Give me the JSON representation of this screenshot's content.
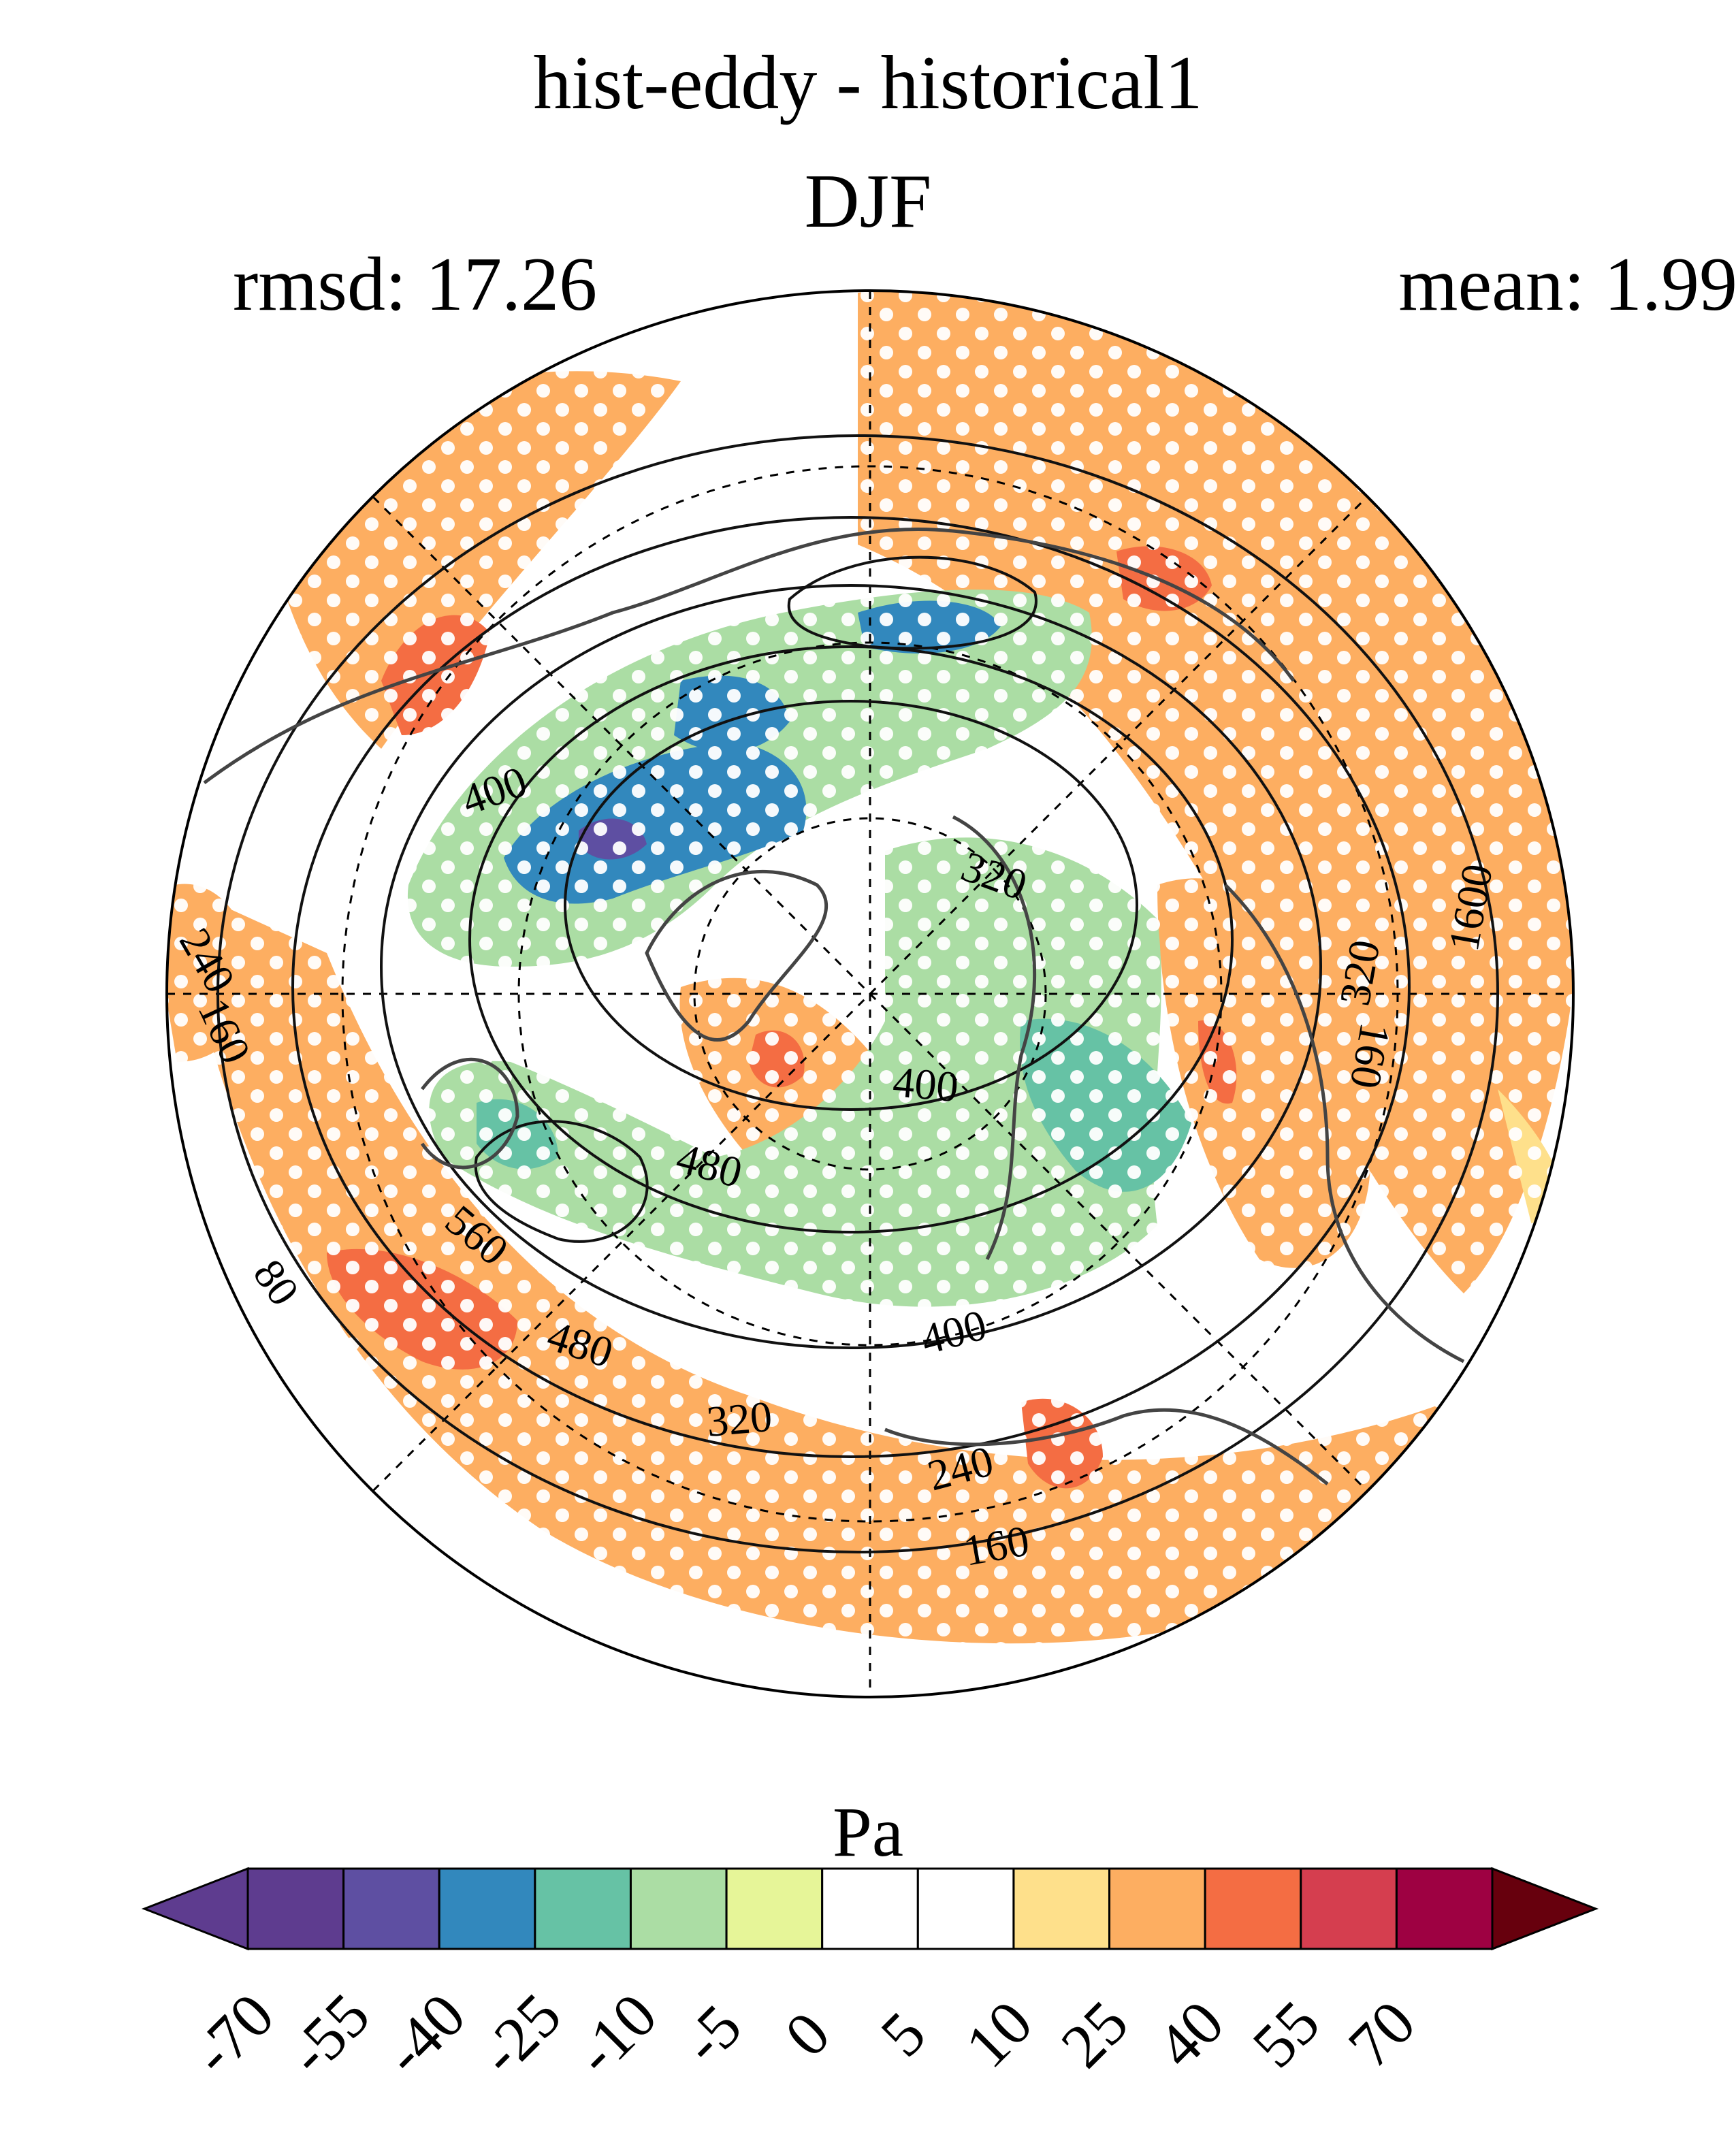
{
  "figure": {
    "title": "hist-eddy - historical1",
    "season": "DJF",
    "rmsd_label": "rmsd: 17.26",
    "mean_label": "mean: 1.99"
  },
  "map": {
    "projection": "north polar stereographic",
    "stippling": "white dots",
    "contour_labels": [
      "400",
      "320",
      "240",
      "160",
      "400",
      "480",
      "560",
      "80",
      "480",
      "400",
      "320",
      "240",
      "160",
      "160",
      "320",
      "1600"
    ]
  },
  "colorbar": {
    "units": "Pa",
    "tick_labels": [
      "-70",
      "-55",
      "-40",
      "-25",
      "-10",
      "-5",
      "0",
      "5",
      "10",
      "25",
      "40",
      "55",
      "70"
    ],
    "colors": [
      "#5e3c8f",
      "#5e4fa2",
      "#3288bd",
      "#66c2a5",
      "#abdda4",
      "#e6f598",
      "#ffffff",
      "#ffffff",
      "#fee08b",
      "#fdae61",
      "#f46d43",
      "#d53e4f",
      "#9e0142"
    ],
    "under_color": "#5e3c8f",
    "over_color": "#67000d"
  }
}
